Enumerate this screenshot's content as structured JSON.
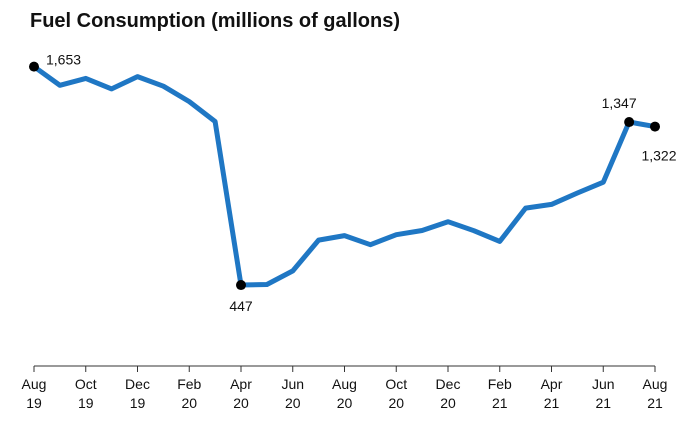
{
  "chart_data": {
    "type": "line",
    "title": "Fuel Consumption (millions of gallons)",
    "xlabel": "",
    "ylabel": "",
    "ylim": [
      0,
      1800
    ],
    "grid": false,
    "x": [
      "Aug 19",
      "Sep 19",
      "Oct 19",
      "Nov 19",
      "Dec 19",
      "Jan 20",
      "Feb 20",
      "Mar 20",
      "Apr 20",
      "May 20",
      "Jun 20",
      "Jul 20",
      "Aug 20",
      "Sep 20",
      "Oct 20",
      "Nov 20",
      "Dec 20",
      "Jan 21",
      "Feb 21",
      "Mar 21",
      "Apr 21",
      "May 21",
      "Jun 21",
      "Jul 21",
      "Aug 21"
    ],
    "series": [
      {
        "name": "",
        "color": "#1f77c4",
        "values": [
          1653,
          1550,
          1588,
          1530,
          1598,
          1545,
          1460,
          1350,
          447,
          450,
          525,
          695,
          720,
          670,
          725,
          748,
          797,
          747,
          688,
          872,
          892,
          955,
          1015,
          1347,
          1322
        ]
      }
    ],
    "x_ticks": [
      {
        "index": 0,
        "line1": "Aug",
        "line2": "19"
      },
      {
        "index": 2,
        "line1": "Oct",
        "line2": "19"
      },
      {
        "index": 4,
        "line1": "Dec",
        "line2": "19"
      },
      {
        "index": 6,
        "line1": "Feb",
        "line2": "20"
      },
      {
        "index": 8,
        "line1": "Apr",
        "line2": "20"
      },
      {
        "index": 10,
        "line1": "Jun",
        "line2": "20"
      },
      {
        "index": 12,
        "line1": "Aug",
        "line2": "20"
      },
      {
        "index": 14,
        "line1": "Oct",
        "line2": "20"
      },
      {
        "index": 16,
        "line1": "Dec",
        "line2": "20"
      },
      {
        "index": 18,
        "line1": "Feb",
        "line2": "21"
      },
      {
        "index": 20,
        "line1": "Apr",
        "line2": "21"
      },
      {
        "index": 22,
        "line1": "Jun",
        "line2": "21"
      },
      {
        "index": 24,
        "line1": "Aug",
        "line2": "21"
      }
    ],
    "annotations": [
      {
        "index": 0,
        "label": "1,653"
      },
      {
        "index": 8,
        "label": "447"
      },
      {
        "index": 23,
        "label": "1,347"
      },
      {
        "index": 24,
        "label": "1,322"
      }
    ]
  }
}
